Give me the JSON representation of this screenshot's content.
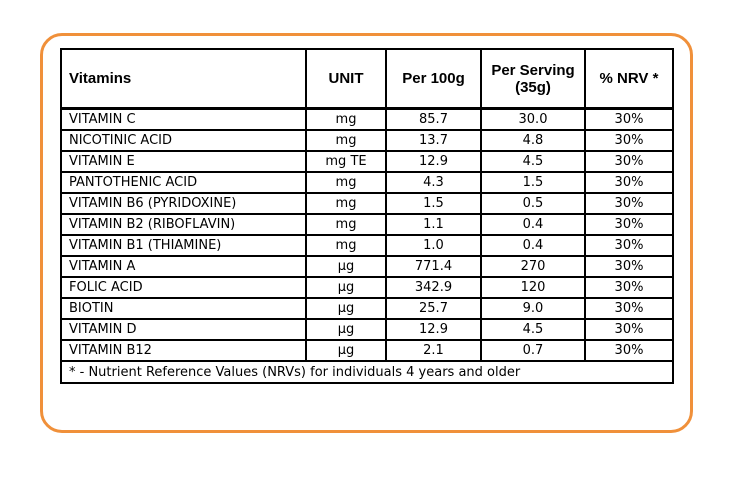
{
  "table": {
    "headers": [
      "Vitamins",
      "UNIT",
      "Per 100g",
      "Per Serving (35g)",
      "% NRV *"
    ],
    "rows": [
      [
        "VITAMIN C",
        "mg",
        "85.7",
        "30.0",
        "30%"
      ],
      [
        "NICOTINIC ACID",
        "mg",
        "13.7",
        "4.8",
        "30%"
      ],
      [
        "VITAMIN E",
        "mg TE",
        "12.9",
        "4.5",
        "30%"
      ],
      [
        "PANTOTHENIC ACID",
        "mg",
        "4.3",
        "1.5",
        "30%"
      ],
      [
        "VITAMIN B6 (PYRIDOXINE)",
        "mg",
        "1.5",
        "0.5",
        "30%"
      ],
      [
        "VITAMIN B2 (RIBOFLAVIN)",
        "mg",
        "1.1",
        "0.4",
        "30%"
      ],
      [
        "VITAMIN B1 (THIAMINE)",
        "mg",
        "1.0",
        "0.4",
        "30%"
      ],
      [
        "VITAMIN A",
        "μg",
        "771.4",
        "270",
        "30%"
      ],
      [
        "FOLIC ACID",
        "μg",
        "342.9",
        "120",
        "30%"
      ],
      [
        "BIOTIN",
        "μg",
        "25.7",
        "9.0",
        "30%"
      ],
      [
        "VITAMIN D",
        "μg",
        "12.9",
        "4.5",
        "30%"
      ],
      [
        "VITAMIN B12",
        "μg",
        "2.1",
        "0.7",
        "30%"
      ]
    ],
    "footnote": "* - Nutrient Reference Values (NRVs) for individuals 4 years and older"
  },
  "colors": {
    "frame_border": "#f0903a",
    "table_border": "#000000"
  }
}
